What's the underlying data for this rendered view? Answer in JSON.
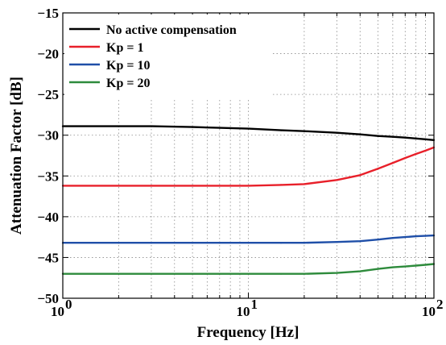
{
  "chart_data": {
    "type": "line",
    "xlabel": "Frequency [Hz]",
    "ylabel": "Attenuation Factor [dB]",
    "xscale": "log",
    "xlim": [
      1,
      100
    ],
    "ylim": [
      -50,
      -15
    ],
    "grid": true,
    "legend_position": "top-left",
    "x_ticks": [
      {
        "value": 1,
        "base": "10",
        "exp": "0"
      },
      {
        "value": 10,
        "base": "10",
        "exp": "1"
      },
      {
        "value": 100,
        "base": "10",
        "exp": "2"
      }
    ],
    "y_ticks": [
      {
        "value": -50,
        "label": "−50"
      },
      {
        "value": -45,
        "label": "−45"
      },
      {
        "value": -40,
        "label": "−40"
      },
      {
        "value": -35,
        "label": "−35"
      },
      {
        "value": -30,
        "label": "−30"
      },
      {
        "value": -25,
        "label": "−25"
      },
      {
        "value": -20,
        "label": "−20"
      },
      {
        "value": -15,
        "label": "−15"
      }
    ],
    "x": [
      1,
      2,
      3,
      5,
      7,
      10,
      15,
      20,
      30,
      40,
      50,
      60,
      70,
      80,
      90,
      100
    ],
    "series": [
      {
        "name": "No active compensation",
        "color": "#000000",
        "values": [
          -28.9,
          -28.9,
          -28.9,
          -29.0,
          -29.1,
          -29.2,
          -29.4,
          -29.5,
          -29.7,
          -29.9,
          -30.1,
          -30.2,
          -30.3,
          -30.4,
          -30.5,
          -30.6
        ]
      },
      {
        "name": "Kp = 1",
        "color": "#e8202a",
        "values": [
          -36.2,
          -36.2,
          -36.2,
          -36.2,
          -36.2,
          -36.2,
          -36.1,
          -36.0,
          -35.5,
          -34.9,
          -34.1,
          -33.4,
          -32.8,
          -32.3,
          -31.9,
          -31.5
        ]
      },
      {
        "name": "Kp = 10",
        "color": "#1f4fa8",
        "values": [
          -43.2,
          -43.2,
          -43.2,
          -43.2,
          -43.2,
          -43.2,
          -43.2,
          -43.2,
          -43.1,
          -43.0,
          -42.8,
          -42.6,
          -42.5,
          -42.4,
          -42.35,
          -42.3
        ]
      },
      {
        "name": "Kp = 20",
        "color": "#2e8b3c",
        "values": [
          -47.0,
          -47.0,
          -47.0,
          -47.0,
          -47.0,
          -47.0,
          -47.0,
          -47.0,
          -46.9,
          -46.7,
          -46.4,
          -46.2,
          -46.1,
          -46.0,
          -45.9,
          -45.8
        ]
      }
    ]
  }
}
